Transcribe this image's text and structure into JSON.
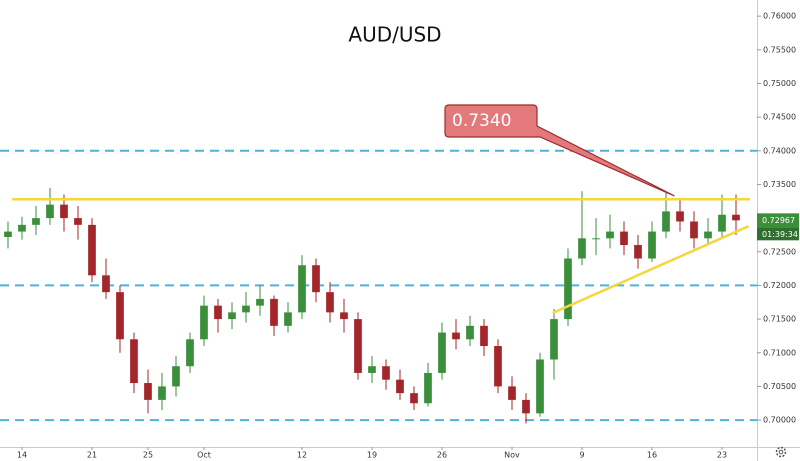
{
  "chart_data": {
    "type": "candlestick",
    "title": "AUD/USD",
    "up_color": "#3b8f3b",
    "down_color": "#a3262a",
    "x": [
      -1,
      0,
      1,
      2,
      3,
      4,
      5,
      6,
      7,
      8,
      9,
      10,
      11,
      12,
      13,
      14,
      15,
      16,
      17,
      18,
      19,
      20,
      21,
      22,
      23,
      24,
      25,
      26,
      27,
      28,
      29,
      30,
      31,
      32,
      33,
      34,
      35,
      36,
      37,
      38,
      39,
      40,
      41,
      42,
      43,
      44,
      45,
      46,
      47,
      48,
      49,
      50,
      51
    ],
    "ohlc": [
      [
        0.7272,
        0.7295,
        0.7255,
        0.728
      ],
      [
        0.728,
        0.7302,
        0.7268,
        0.729
      ],
      [
        0.729,
        0.7318,
        0.7275,
        0.73
      ],
      [
        0.73,
        0.7345,
        0.729,
        0.732
      ],
      [
        0.732,
        0.7335,
        0.728,
        0.73
      ],
      [
        0.73,
        0.7318,
        0.7268,
        0.729
      ],
      [
        0.729,
        0.73,
        0.7205,
        0.7215
      ],
      [
        0.7215,
        0.724,
        0.718,
        0.719
      ],
      [
        0.719,
        0.72,
        0.71,
        0.712
      ],
      [
        0.712,
        0.713,
        0.704,
        0.7055
      ],
      [
        0.7055,
        0.7075,
        0.701,
        0.703
      ],
      [
        0.703,
        0.707,
        0.7015,
        0.705
      ],
      [
        0.705,
        0.7095,
        0.7035,
        0.708
      ],
      [
        0.708,
        0.713,
        0.707,
        0.712
      ],
      [
        0.712,
        0.7185,
        0.711,
        0.717
      ],
      [
        0.717,
        0.718,
        0.713,
        0.715
      ],
      [
        0.715,
        0.7175,
        0.7135,
        0.716
      ],
      [
        0.716,
        0.719,
        0.7145,
        0.717
      ],
      [
        0.717,
        0.72,
        0.7155,
        0.718
      ],
      [
        0.718,
        0.7185,
        0.7125,
        0.714
      ],
      [
        0.714,
        0.7175,
        0.713,
        0.716
      ],
      [
        0.716,
        0.7245,
        0.715,
        0.723
      ],
      [
        0.723,
        0.724,
        0.7175,
        0.719
      ],
      [
        0.719,
        0.7205,
        0.7145,
        0.716
      ],
      [
        0.716,
        0.718,
        0.713,
        0.715
      ],
      [
        0.715,
        0.716,
        0.706,
        0.707
      ],
      [
        0.707,
        0.7095,
        0.7055,
        0.708
      ],
      [
        0.708,
        0.709,
        0.7045,
        0.706
      ],
      [
        0.706,
        0.7075,
        0.703,
        0.704
      ],
      [
        0.704,
        0.705,
        0.7015,
        0.7025
      ],
      [
        0.7025,
        0.7085,
        0.702,
        0.707
      ],
      [
        0.707,
        0.7145,
        0.706,
        0.713
      ],
      [
        0.713,
        0.715,
        0.7105,
        0.712
      ],
      [
        0.712,
        0.7155,
        0.711,
        0.714
      ],
      [
        0.714,
        0.715,
        0.7095,
        0.711
      ],
      [
        0.711,
        0.712,
        0.704,
        0.705
      ],
      [
        0.705,
        0.7065,
        0.7015,
        0.703
      ],
      [
        0.703,
        0.704,
        0.6995,
        0.701
      ],
      [
        0.701,
        0.71,
        0.7005,
        0.709
      ],
      [
        0.709,
        0.7165,
        0.706,
        0.715
      ],
      [
        0.715,
        0.7255,
        0.714,
        0.724
      ],
      [
        0.724,
        0.734,
        0.723,
        0.727
      ],
      [
        0.727,
        0.73,
        0.7245,
        0.727
      ],
      [
        0.727,
        0.7305,
        0.7255,
        0.728
      ],
      [
        0.728,
        0.7295,
        0.7245,
        0.726
      ],
      [
        0.726,
        0.7275,
        0.7225,
        0.724
      ],
      [
        0.724,
        0.7295,
        0.7235,
        0.728
      ],
      [
        0.728,
        0.7338,
        0.727,
        0.731
      ],
      [
        0.731,
        0.733,
        0.728,
        0.7295
      ],
      [
        0.7295,
        0.731,
        0.7255,
        0.727
      ],
      [
        0.727,
        0.73,
        0.726,
        0.728
      ],
      [
        0.728,
        0.7335,
        0.727,
        0.7305
      ],
      [
        0.7305,
        0.7335,
        0.7275,
        0.72967
      ]
    ],
    "xlim": [
      -1.57,
      52.5
    ],
    "xticks": [
      {
        "value": 0,
        "label": "14"
      },
      {
        "value": 5,
        "label": "21"
      },
      {
        "value": 9,
        "label": "25"
      },
      {
        "value": 13,
        "label": "Oct"
      },
      {
        "value": 20,
        "label": "12"
      },
      {
        "value": 25,
        "label": "19"
      },
      {
        "value": 30,
        "label": "26"
      },
      {
        "value": 35,
        "label": "Nov"
      },
      {
        "value": 40,
        "label": "9"
      },
      {
        "value": 45,
        "label": "16"
      },
      {
        "value": 50,
        "label": "23"
      }
    ],
    "ylim": [
      0.696,
      0.7624
    ],
    "yticks": [
      {
        "value": 0.7,
        "label": "0.70000"
      },
      {
        "value": 0.705,
        "label": "0.70500"
      },
      {
        "value": 0.71,
        "label": "0.71000"
      },
      {
        "value": 0.715,
        "label": "0.71500"
      },
      {
        "value": 0.72,
        "label": "0.72000"
      },
      {
        "value": 0.725,
        "label": "0.72500"
      },
      {
        "value": 0.73,
        "label": "0.73000"
      },
      {
        "value": 0.735,
        "label": "0.73500"
      },
      {
        "value": 0.74,
        "label": "0.74000"
      },
      {
        "value": 0.745,
        "label": "0.74500"
      },
      {
        "value": 0.75,
        "label": "0.75000"
      },
      {
        "value": 0.755,
        "label": "0.75500"
      },
      {
        "value": 0.76,
        "label": "0.76000"
      }
    ],
    "dashed_levels": [
      0.74,
      0.72,
      0.7
    ],
    "dashed_color": "#4fb3d9",
    "resistance": {
      "x": [
        -0.7,
        52
      ],
      "y": 0.7328
    },
    "trendline": {
      "x": [
        37.9,
        51.9
      ],
      "y": [
        0.7159,
        0.7288
      ]
    },
    "line_color": "#f5d63d",
    "callout": {
      "label": "0.7340",
      "x": 46.6,
      "y": 0.7333
    },
    "last_price": {
      "value": 0.72967,
      "label": "0.72967"
    },
    "countdown": "01:39:34"
  }
}
